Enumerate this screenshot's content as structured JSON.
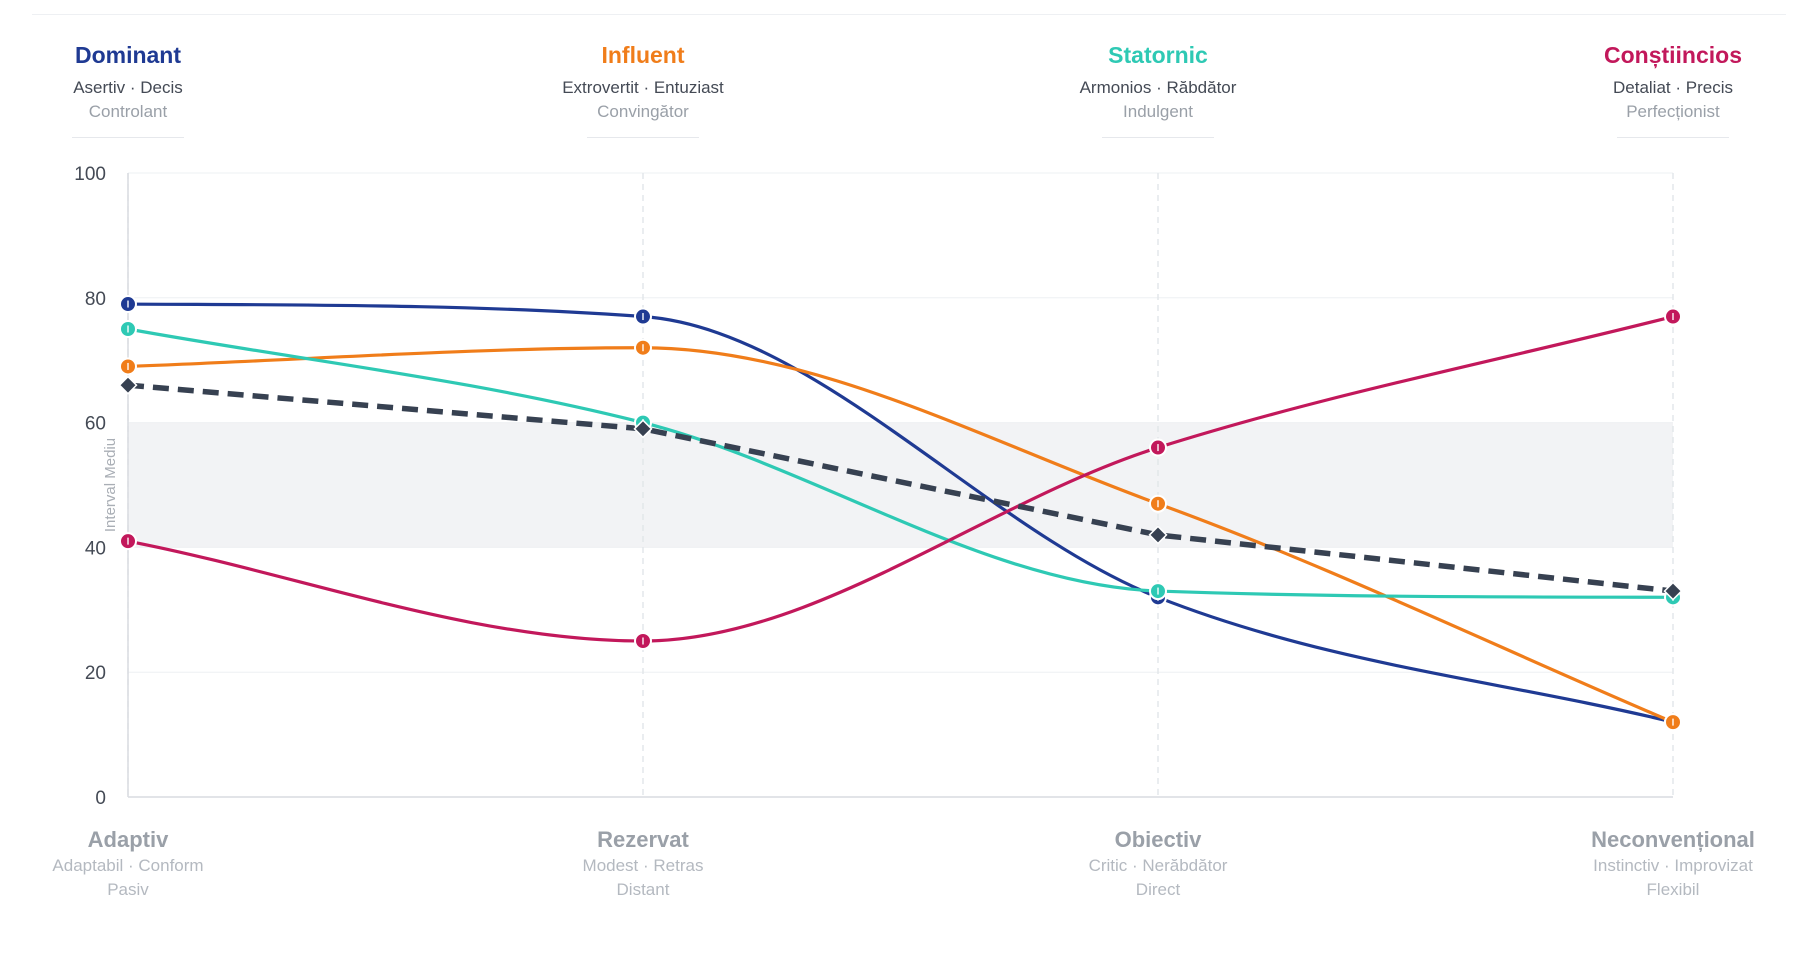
{
  "chart_data": {
    "type": "line",
    "categories": [
      "Adaptiv",
      "Rezervat",
      "Obiectiv",
      "Neconvențional"
    ],
    "x": [
      0,
      1,
      2,
      3
    ],
    "ylim": [
      0,
      100
    ],
    "yticks": [
      0,
      20,
      40,
      60,
      80,
      100
    ],
    "band": {
      "label": "Interval Mediu",
      "from": 40,
      "to": 60,
      "color": "#f2f3f5"
    },
    "top_labels": [
      {
        "title": "Dominant",
        "traits": "Asertiv · Decis",
        "extra": "Controlant",
        "color": "#1f3a93"
      },
      {
        "title": "Influent",
        "traits": "Extrovertit · Entuziast",
        "extra": "Convingător",
        "color": "#f07d1a"
      },
      {
        "title": "Statornic",
        "traits": "Armonios · Răbdător",
        "extra": "Indulgent",
        "color": "#2ec9b4"
      },
      {
        "title": "Conștiincios",
        "traits": "Detaliat · Precis",
        "extra": "Perfecționist",
        "color": "#c2185b"
      }
    ],
    "bottom_labels": [
      {
        "title": "Adaptiv",
        "traits": "Adaptabil · Conform",
        "extra": "Pasiv"
      },
      {
        "title": "Rezervat",
        "traits": "Modest · Retras",
        "extra": "Distant"
      },
      {
        "title": "Obiectiv",
        "traits": "Critic · Nerăbdător",
        "extra": "Direct"
      },
      {
        "title": "Neconvențional",
        "traits": "Instinctiv · Improvizat",
        "extra": "Flexibil"
      }
    ],
    "series": [
      {
        "color": "#1f3a93",
        "values": [
          79,
          77,
          32,
          12
        ]
      },
      {
        "color": "#f07d1a",
        "values": [
          69,
          72,
          47,
          12
        ]
      },
      {
        "color": "#2ec9b4",
        "values": [
          75,
          60,
          33,
          32
        ]
      },
      {
        "color": "#c2185b",
        "values": [
          41,
          25,
          56,
          77
        ]
      },
      {
        "color": "#374151",
        "values": [
          66,
          59,
          42,
          33
        ],
        "dashed": true,
        "marker": "diamond"
      }
    ]
  }
}
